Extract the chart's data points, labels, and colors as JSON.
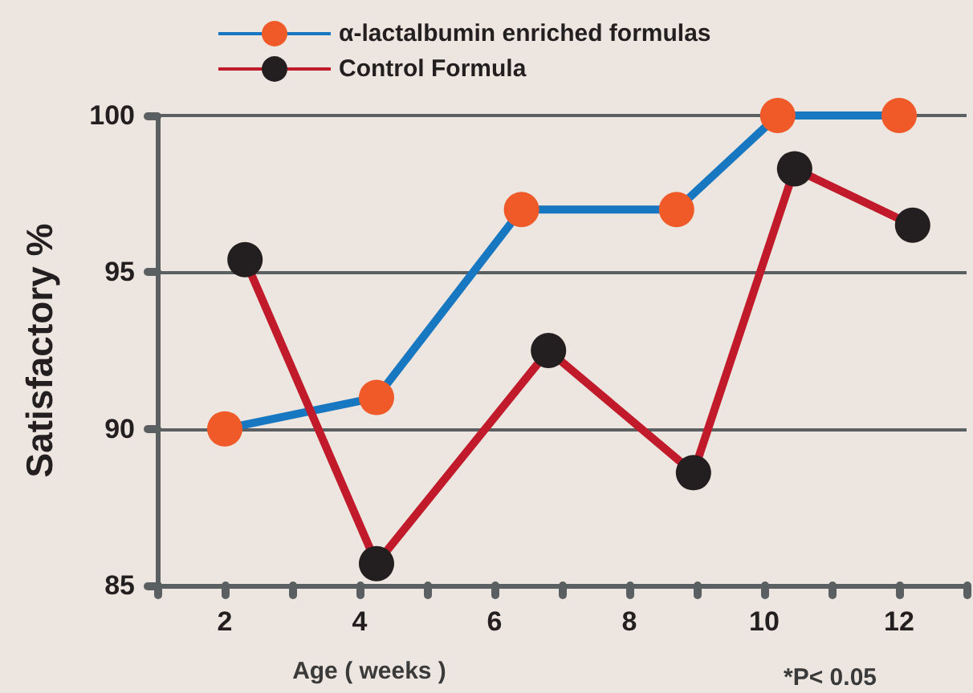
{
  "chart_data": {
    "type": "line",
    "xlabel": "Age ( weeks )",
    "ylabel": "Satisfactory %",
    "xlim": [
      1,
      13
    ],
    "xticks": [
      {
        "value": 1,
        "label": null
      },
      {
        "value": 2,
        "label": "2"
      },
      {
        "value": 3,
        "label": null
      },
      {
        "value": 4,
        "label": "4"
      },
      {
        "value": 5,
        "label": null
      },
      {
        "value": 6,
        "label": "6"
      },
      {
        "value": 7,
        "label": null
      },
      {
        "value": 8,
        "label": "8"
      },
      {
        "value": 9,
        "label": null
      },
      {
        "value": 10,
        "label": "10"
      },
      {
        "value": 11,
        "label": null
      },
      {
        "value": 12,
        "label": "12"
      },
      {
        "value": 13,
        "label": null
      }
    ],
    "ylim": [
      85,
      100
    ],
    "yticks": [
      85,
      90,
      95,
      100
    ],
    "grid": "y",
    "legend": "top left",
    "marker": "circle",
    "line_style": "solid",
    "annotations": [
      "*P< 0.05"
    ],
    "series": [
      {
        "name": "α-lactalbumin enriched formulas",
        "color": "#1777c0",
        "x": [
          2,
          4.25,
          6.4,
          8.7,
          10.2,
          12
        ],
        "values": [
          90,
          91,
          97,
          97,
          100,
          100
        ]
      },
      {
        "name": "Control Formula",
        "color": "#c11b2b",
        "x": [
          2.3,
          4.25,
          6.8,
          8.95,
          10.45,
          12.2
        ],
        "values": [
          95.4,
          85.7,
          92.5,
          88.6,
          98.3,
          96.5
        ]
      }
    ]
  }
}
